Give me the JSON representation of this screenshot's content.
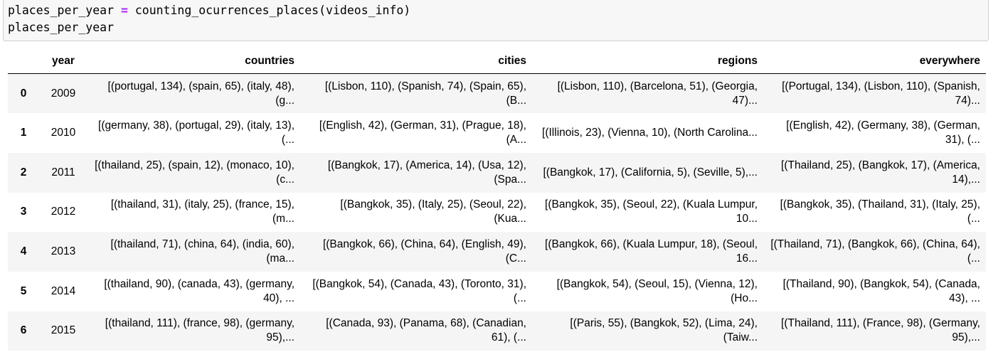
{
  "code": {
    "line1_var": "places_per_year ",
    "line1_op": "=",
    "line1_call": " counting_ocurrences_places(videos_info)",
    "line2": "places_per_year"
  },
  "table": {
    "index_header": "",
    "columns": [
      "year",
      "countries",
      "cities",
      "regions",
      "everywhere"
    ],
    "rows": [
      {
        "index": "0",
        "year": "2009",
        "countries": "[(portugal, 134), (spain, 65), (italy, 48), (g...",
        "cities": "[(Lisbon, 110), (Spanish, 74), (Spain, 65), (B...",
        "regions": "[(Lisbon, 110), (Barcelona, 51), (Georgia, 47)...",
        "everywhere": "[(Portugal, 134), (Lisbon, 110), (Spanish, 74)..."
      },
      {
        "index": "1",
        "year": "2010",
        "countries": "[(germany, 38), (portugal, 29), (italy, 13), (...",
        "cities": "[(English, 42), (German, 31), (Prague, 18), (A...",
        "regions": "[(Illinois, 23), (Vienna, 10), (North Carolina...",
        "everywhere": "[(English, 42), (Germany, 38), (German, 31), (..."
      },
      {
        "index": "2",
        "year": "2011",
        "countries": "[(thailand, 25), (spain, 12), (monaco, 10), (c...",
        "cities": "[(Bangkok, 17), (America, 14), (Usa, 12), (Spa...",
        "regions": "[(Bangkok, 17), (California, 5), (Seville, 5),...",
        "everywhere": "[(Thailand, 25), (Bangkok, 17), (America, 14),..."
      },
      {
        "index": "3",
        "year": "2012",
        "countries": "[(thailand, 31), (italy, 25), (france, 15), (m...",
        "cities": "[(Bangkok, 35), (Italy, 25), (Seoul, 22), (Kua...",
        "regions": "[(Bangkok, 35), (Seoul, 22), (Kuala Lumpur, 10...",
        "everywhere": "[(Bangkok, 35), (Thailand, 31), (Italy, 25), (..."
      },
      {
        "index": "4",
        "year": "2013",
        "countries": "[(thailand, 71), (china, 64), (india, 60), (ma...",
        "cities": "[(Bangkok, 66), (China, 64), (English, 49), (C...",
        "regions": "[(Bangkok, 66), (Kuala Lumpur, 18), (Seoul, 16...",
        "everywhere": "[(Thailand, 71), (Bangkok, 66), (China, 64), (..."
      },
      {
        "index": "5",
        "year": "2014",
        "countries": "[(thailand, 90), (canada, 43), (germany, 40), ...",
        "cities": "[(Bangkok, 54), (Canada, 43), (Toronto, 31), (...",
        "regions": "[(Bangkok, 54), (Seoul, 15), (Vienna, 12), (Ho...",
        "everywhere": "[(Thailand, 90), (Bangkok, 54), (Canada, 43), ..."
      },
      {
        "index": "6",
        "year": "2015",
        "countries": "[(thailand, 111), (france, 98), (germany, 95),...",
        "cities": "[(Canada, 93), (Panama, 68), (Canadian, 61), (...",
        "regions": "[(Paris, 55), (Bangkok, 52), (Lima, 24), (Taiw...",
        "everywhere": "[(Thailand, 111), (France, 98), (Germany, 95),..."
      }
    ]
  }
}
